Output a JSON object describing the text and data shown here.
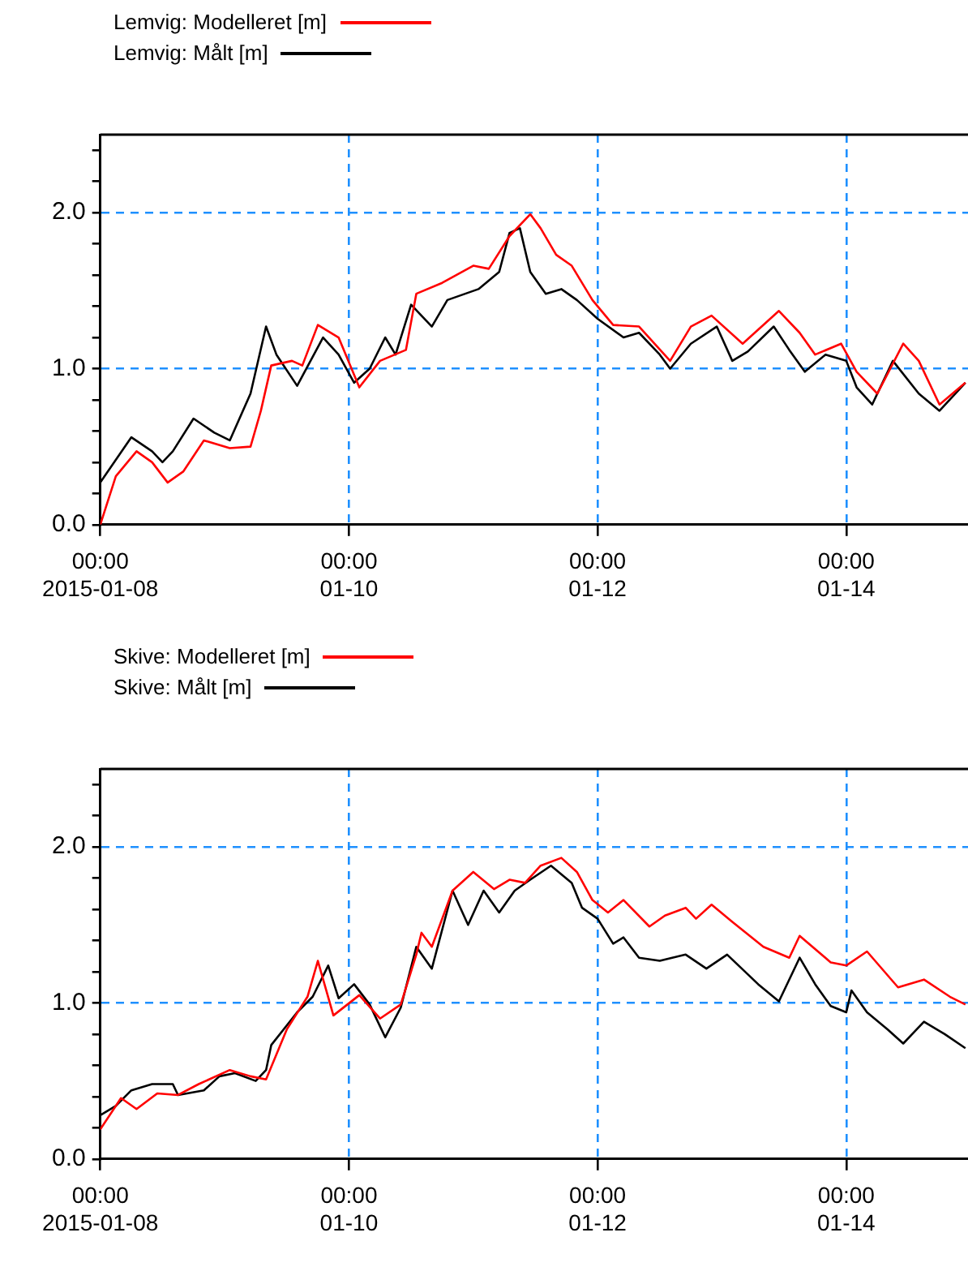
{
  "chart_data": [
    {
      "type": "line",
      "legend": "top left",
      "grid": true,
      "xlim": [
        "2015-01-08",
        "2015-01-14T23:30"
      ],
      "ylim": [
        0,
        2.5
      ],
      "xticks": [
        {
          "value": "2015-01-08",
          "label": "00:00\n2015-01-08"
        },
        {
          "value": "2015-01-10",
          "label": "00:00\n01-10"
        },
        {
          "value": "2015-01-12",
          "label": "00:00\n01-12"
        },
        {
          "value": "2015-01-14",
          "label": "00:00\n01-14"
        }
      ],
      "yticks": [
        {
          "value": 0,
          "label": "0.0"
        },
        {
          "value": 0.2,
          "label": null
        },
        {
          "value": 0.4,
          "label": null
        },
        {
          "value": 0.6,
          "label": null
        },
        {
          "value": 0.8,
          "label": null
        },
        {
          "value": 1,
          "label": "1.0"
        },
        {
          "value": 1.2,
          "label": null
        },
        {
          "value": 1.4,
          "label": null
        },
        {
          "value": 1.6,
          "label": null
        },
        {
          "value": 1.8,
          "label": null
        },
        {
          "value": 2,
          "label": "2.0"
        },
        {
          "value": 2.2,
          "label": null
        },
        {
          "value": 2.4,
          "label": null
        }
      ],
      "series": [
        {
          "name": "Lemvig: Modelleret [m]",
          "color": "#ff0000",
          "x": [
            "2015-01-08T00:00",
            "2015-01-08T03:00",
            "2015-01-08T07:00",
            "2015-01-08T10:00",
            "2015-01-08T13:00",
            "2015-01-08T16:00",
            "2015-01-08T20:00",
            "2015-01-09T01:00",
            "2015-01-09T05:00",
            "2015-01-09T07:00",
            "2015-01-09T09:00",
            "2015-01-09T13:00",
            "2015-01-09T15:00",
            "2015-01-09T18:00",
            "2015-01-09T22:00",
            "2015-01-10T02:00",
            "2015-01-10T06:00",
            "2015-01-10T11:00",
            "2015-01-10T13:00",
            "2015-01-10T18:00",
            "2015-01-11T00:00",
            "2015-01-11T03:00",
            "2015-01-11T07:00",
            "2015-01-11T11:00",
            "2015-01-11T13:00",
            "2015-01-11T16:00",
            "2015-01-11T19:00",
            "2015-01-11T23:00",
            "2015-01-12T03:00",
            "2015-01-12T08:00",
            "2015-01-12T14:00",
            "2015-01-12T18:00",
            "2015-01-12T22:00",
            "2015-01-13T04:00",
            "2015-01-13T11:00",
            "2015-01-13T15:00",
            "2015-01-13T18:00",
            "2015-01-13T23:00",
            "2015-01-14T02:00",
            "2015-01-14T06:00",
            "2015-01-14T11:00",
            "2015-01-14T14:00",
            "2015-01-14T18:00",
            "2015-01-14T23:00"
          ],
          "values": [
            0.0,
            0.31,
            0.47,
            0.4,
            0.27,
            0.34,
            0.54,
            0.49,
            0.5,
            0.73,
            1.02,
            1.05,
            1.02,
            1.28,
            1.2,
            0.88,
            1.05,
            1.12,
            1.48,
            1.55,
            1.66,
            1.64,
            1.85,
            1.99,
            1.9,
            1.73,
            1.66,
            1.44,
            1.28,
            1.27,
            1.05,
            1.27,
            1.34,
            1.16,
            1.37,
            1.23,
            1.09,
            1.16,
            0.98,
            0.84,
            1.16,
            1.05,
            0.77,
            0.91
          ]
        },
        {
          "name": "Lemvig: Målt [m]",
          "color": "#000000",
          "x": [
            "2015-01-08T00:00",
            "2015-01-08T06:00",
            "2015-01-08T10:00",
            "2015-01-08T12:00",
            "2015-01-08T14:00",
            "2015-01-08T18:00",
            "2015-01-08T22:00",
            "2015-01-09T01:00",
            "2015-01-09T05:00",
            "2015-01-09T08:00",
            "2015-01-09T10:00",
            "2015-01-09T14:00",
            "2015-01-09T19:00",
            "2015-01-09T22:00",
            "2015-01-10T01:00",
            "2015-01-10T04:00",
            "2015-01-10T07:00",
            "2015-01-10T09:00",
            "2015-01-10T12:00",
            "2015-01-10T16:00",
            "2015-01-10T19:00",
            "2015-01-11T01:00",
            "2015-01-11T05:00",
            "2015-01-11T07:00",
            "2015-01-11T09:00",
            "2015-01-11T11:00",
            "2015-01-11T14:00",
            "2015-01-11T17:00",
            "2015-01-11T20:00",
            "2015-01-12T00:00",
            "2015-01-12T05:00",
            "2015-01-12T08:00",
            "2015-01-12T12:00",
            "2015-01-12T14:00",
            "2015-01-12T18:00",
            "2015-01-12T23:00",
            "2015-01-13T02:00",
            "2015-01-13T05:00",
            "2015-01-13T10:00",
            "2015-01-13T13:00",
            "2015-01-13T16:00",
            "2015-01-13T20:00",
            "2015-01-14T00:00",
            "2015-01-14T02:00",
            "2015-01-14T05:00",
            "2015-01-14T09:00",
            "2015-01-14T14:00",
            "2015-01-14T18:00",
            "2015-01-14T23:00"
          ],
          "values": [
            0.27,
            0.56,
            0.47,
            0.4,
            0.47,
            0.68,
            0.59,
            0.54,
            0.84,
            1.27,
            1.09,
            0.89,
            1.2,
            1.09,
            0.91,
            1.0,
            1.2,
            1.09,
            1.41,
            1.27,
            1.44,
            1.51,
            1.62,
            1.87,
            1.9,
            1.62,
            1.48,
            1.51,
            1.44,
            1.32,
            1.2,
            1.23,
            1.09,
            1.0,
            1.16,
            1.27,
            1.05,
            1.11,
            1.27,
            1.12,
            0.98,
            1.09,
            1.05,
            0.88,
            0.77,
            1.05,
            0.84,
            0.73,
            0.91
          ]
        }
      ]
    },
    {
      "type": "line",
      "legend": "top left",
      "grid": true,
      "xlim": [
        "2015-01-08",
        "2015-01-14T23:30"
      ],
      "ylim": [
        0,
        2.5
      ],
      "xticks": [
        {
          "value": "2015-01-08",
          "label": "00:00\n2015-01-08"
        },
        {
          "value": "2015-01-10",
          "label": "00:00\n01-10"
        },
        {
          "value": "2015-01-12",
          "label": "00:00\n01-12"
        },
        {
          "value": "2015-01-14",
          "label": "00:00\n01-14"
        }
      ],
      "yticks": [
        {
          "value": 0,
          "label": "0.0"
        },
        {
          "value": 0.2,
          "label": null
        },
        {
          "value": 0.4,
          "label": null
        },
        {
          "value": 0.6,
          "label": null
        },
        {
          "value": 0.8,
          "label": null
        },
        {
          "value": 1,
          "label": "1.0"
        },
        {
          "value": 1.2,
          "label": null
        },
        {
          "value": 1.4,
          "label": null
        },
        {
          "value": 1.6,
          "label": null
        },
        {
          "value": 1.8,
          "label": null
        },
        {
          "value": 2,
          "label": "2.0"
        },
        {
          "value": 2.2,
          "label": null
        },
        {
          "value": 2.4,
          "label": null
        }
      ],
      "series": [
        {
          "name": "Skive: Modelleret [m]",
          "color": "#ff0000",
          "x": [
            "2015-01-08T00:00",
            "2015-01-08T04:00",
            "2015-01-08T07:00",
            "2015-01-08T11:00",
            "2015-01-08T15:00",
            "2015-01-08T19:00",
            "2015-01-09T01:00",
            "2015-01-09T05:00",
            "2015-01-09T08:00",
            "2015-01-09T12:00",
            "2015-01-09T16:00",
            "2015-01-09T18:00",
            "2015-01-09T21:00",
            "2015-01-10T02:00",
            "2015-01-10T06:00",
            "2015-01-10T10:00",
            "2015-01-10T13:00",
            "2015-01-10T14:00",
            "2015-01-10T16:00",
            "2015-01-10T20:00",
            "2015-01-11T00:00",
            "2015-01-11T04:00",
            "2015-01-11T07:00",
            "2015-01-11T10:00",
            "2015-01-11T13:00",
            "2015-01-11T17:00",
            "2015-01-11T20:00",
            "2015-01-11T23:00",
            "2015-01-12T02:00",
            "2015-01-12T05:00",
            "2015-01-12T10:00",
            "2015-01-12T13:00",
            "2015-01-12T17:00",
            "2015-01-12T19:00",
            "2015-01-12T22:00",
            "2015-01-13T02:00",
            "2015-01-13T08:00",
            "2015-01-13T13:00",
            "2015-01-13T15:00",
            "2015-01-13T21:00",
            "2015-01-14T00:00",
            "2015-01-14T04:00",
            "2015-01-14T10:00",
            "2015-01-14T15:00",
            "2015-01-14T20:00",
            "2015-01-14T23:00"
          ],
          "values": [
            0.19,
            0.39,
            0.32,
            0.42,
            0.41,
            0.48,
            0.57,
            0.53,
            0.51,
            0.83,
            1.04,
            1.27,
            0.92,
            1.05,
            0.9,
            0.99,
            1.31,
            1.45,
            1.36,
            1.72,
            1.84,
            1.73,
            1.79,
            1.77,
            1.88,
            1.93,
            1.84,
            1.66,
            1.58,
            1.66,
            1.49,
            1.56,
            1.61,
            1.54,
            1.63,
            1.52,
            1.36,
            1.29,
            1.43,
            1.26,
            1.24,
            1.33,
            1.1,
            1.15,
            1.04,
            0.99
          ]
        },
        {
          "name": "Skive: Målt [m]",
          "color": "#000000",
          "x": [
            "2015-01-08T00:00",
            "2015-01-08T03:00",
            "2015-01-08T06:00",
            "2015-01-08T10:00",
            "2015-01-08T14:00",
            "2015-01-08T15:00",
            "2015-01-08T20:00",
            "2015-01-08T23:00",
            "2015-01-09T02:00",
            "2015-01-09T06:00",
            "2015-01-09T08:00",
            "2015-01-09T09:00",
            "2015-01-09T14:00",
            "2015-01-09T17:00",
            "2015-01-09T20:00",
            "2015-01-09T22:00",
            "2015-01-10T01:00",
            "2015-01-10T04:00",
            "2015-01-10T07:00",
            "2015-01-10T10:00",
            "2015-01-10T13:00",
            "2015-01-10T16:00",
            "2015-01-10T20:00",
            "2015-01-10T23:00",
            "2015-01-11T02:00",
            "2015-01-11T05:00",
            "2015-01-11T08:00",
            "2015-01-11T11:00",
            "2015-01-11T15:00",
            "2015-01-11T19:00",
            "2015-01-11T21:00",
            "2015-01-12T00:00",
            "2015-01-12T03:00",
            "2015-01-12T05:00",
            "2015-01-12T08:00",
            "2015-01-12T12:00",
            "2015-01-12T17:00",
            "2015-01-12T21:00",
            "2015-01-13T01:00",
            "2015-01-13T07:00",
            "2015-01-13T11:00",
            "2015-01-13T15:00",
            "2015-01-13T18:00",
            "2015-01-13T21:00",
            "2015-01-14T00:00",
            "2015-01-14T01:00",
            "2015-01-14T04:00",
            "2015-01-14T08:00",
            "2015-01-14T11:00",
            "2015-01-14T15:00",
            "2015-01-14T19:00",
            "2015-01-14T23:00"
          ],
          "values": [
            0.28,
            0.34,
            0.44,
            0.48,
            0.48,
            0.41,
            0.44,
            0.53,
            0.55,
            0.5,
            0.57,
            0.73,
            0.94,
            1.04,
            1.24,
            1.03,
            1.12,
            0.99,
            0.78,
            0.97,
            1.36,
            1.22,
            1.72,
            1.5,
            1.72,
            1.58,
            1.72,
            1.79,
            1.88,
            1.77,
            1.61,
            1.54,
            1.38,
            1.42,
            1.29,
            1.27,
            1.31,
            1.22,
            1.31,
            1.12,
            1.01,
            1.29,
            1.12,
            0.98,
            0.94,
            1.08,
            0.94,
            0.83,
            0.74,
            0.88,
            0.8,
            0.71
          ]
        }
      ]
    }
  ]
}
